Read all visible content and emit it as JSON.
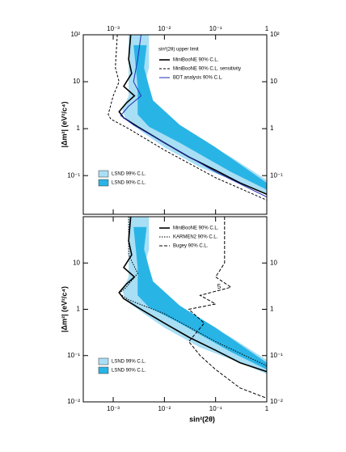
{
  "chart_data": [
    {
      "type": "line",
      "log_x": true,
      "log_y": true,
      "xaxis_position": "top",
      "xlim": [
        0.00026,
        1
      ],
      "ylim": [
        0.015,
        100
      ],
      "xticks": [
        {
          "value": 0.001,
          "label": "10⁻³"
        },
        {
          "value": 0.01,
          "label": "10⁻²"
        },
        {
          "value": 0.1,
          "label": "10⁻¹"
        },
        1
      ],
      "yticks": [
        {
          "value": 100,
          "label": "10²"
        },
        10,
        1,
        {
          "value": 0.1,
          "label": "10⁻¹"
        }
      ],
      "ylabel": "|Δm²| (eV²/c⁴)",
      "legend_title": "sin²(2θ) upper limit",
      "series": [
        {
          "name": "LSND 99% C.L.",
          "fill": true,
          "color": "#a8dff5",
          "x": [
            0.002,
            0.005,
            0.005,
            0.004,
            0.005,
            0.008,
            0.03,
            0.2,
            1,
            1,
            0.3,
            0.05,
            0.01,
            0.004,
            0.0018,
            0.0015,
            0.002
          ],
          "values": [
            100,
            100,
            20,
            8,
            4,
            2,
            0.8,
            0.25,
            0.08,
            0.04,
            0.07,
            0.15,
            0.4,
            0.8,
            1.5,
            2.5,
            5
          ]
        },
        {
          "name": "LSND 90% C.L.",
          "fill": true,
          "color": "#29b4e6",
          "x": [
            0.0025,
            0.0045,
            0.004,
            0.005,
            0.006,
            0.02,
            0.1,
            1,
            1,
            0.2,
            0.02,
            0.005,
            0.003,
            0.003
          ],
          "values": [
            60,
            60,
            20,
            8,
            4,
            1.2,
            0.4,
            0.07,
            0.05,
            0.12,
            0.5,
            1.1,
            2,
            8
          ]
        },
        {
          "name": "MiniBooNE 90% C.L.",
          "color": "#000000",
          "dash": "none",
          "width": 1.6,
          "x": [
            0.0022,
            0.002,
            0.0023,
            0.0016,
            0.0026,
            0.0018,
            0.0013,
            0.0016,
            0.003,
            0.01,
            0.03,
            0.1,
            0.3,
            1
          ],
          "values": [
            100,
            30,
            15,
            8,
            5,
            3.5,
            2.3,
            1.7,
            1.1,
            0.5,
            0.25,
            0.13,
            0.07,
            0.04
          ]
        },
        {
          "name": "MiniBooNE 90% C.L. sensitivity",
          "color": "#000000",
          "dash": "3,2",
          "width": 1,
          "x": [
            0.0012,
            0.0011,
            0.0013,
            0.001,
            0.0008,
            0.0009,
            0.002,
            0.01,
            0.1,
            1
          ],
          "values": [
            100,
            20,
            10,
            5,
            2,
            1.6,
            1,
            0.35,
            0.09,
            0.03
          ]
        },
        {
          "name": "BDT analysis 90% C.L.",
          "color": "#1f2fb8",
          "dash": "none",
          "width": 1,
          "x": [
            0.0035,
            0.003,
            0.0025,
            0.0035,
            0.002,
            0.0014,
            0.0025,
            0.01,
            0.1,
            1
          ],
          "values": [
            100,
            30,
            10,
            5,
            3,
            1.9,
            1.2,
            0.5,
            0.12,
            0.035
          ]
        }
      ]
    },
    {
      "type": "line",
      "log_x": true,
      "log_y": true,
      "xaxis_position": "bottom",
      "xlim": [
        0.00026,
        1
      ],
      "ylim": [
        0.01,
        100
      ],
      "xticks": [
        {
          "value": 0.001,
          "label": "10⁻³"
        },
        {
          "value": 0.01,
          "label": "10⁻²"
        },
        {
          "value": 0.1,
          "label": "10⁻¹"
        },
        1
      ],
      "yticks": [
        10,
        1,
        {
          "value": 0.1,
          "label": "10⁻¹"
        },
        {
          "value": 0.01,
          "label": "10⁻²"
        }
      ],
      "xlabel": "sin²(2θ)",
      "ylabel": "|Δm²| (eV²/c⁴)",
      "annotation": "5",
      "series": [
        {
          "name": "LSND 99% C.L.",
          "fill": true,
          "color": "#a8dff5",
          "x": [
            0.002,
            0.005,
            0.005,
            0.004,
            0.005,
            0.008,
            0.03,
            0.2,
            1,
            1,
            0.3,
            0.05,
            0.01,
            0.004,
            0.0018,
            0.0015,
            0.002
          ],
          "values": [
            100,
            100,
            20,
            8,
            4,
            2,
            0.8,
            0.25,
            0.08,
            0.04,
            0.07,
            0.15,
            0.4,
            0.8,
            1.5,
            2.5,
            5
          ]
        },
        {
          "name": "LSND 90% C.L.",
          "fill": true,
          "color": "#29b4e6",
          "x": [
            0.0025,
            0.0045,
            0.004,
            0.005,
            0.006,
            0.02,
            0.1,
            1,
            1,
            0.2,
            0.02,
            0.005,
            0.003,
            0.003
          ],
          "values": [
            60,
            60,
            20,
            8,
            4,
            1.2,
            0.4,
            0.07,
            0.05,
            0.12,
            0.5,
            1.1,
            2,
            8
          ]
        },
        {
          "name": "MiniBooNE 90% C.L.",
          "color": "#000000",
          "dash": "none",
          "width": 1.6,
          "x": [
            0.0022,
            0.002,
            0.0023,
            0.0016,
            0.0026,
            0.0018,
            0.0013,
            0.0016,
            0.003,
            0.01,
            0.03,
            0.1,
            0.3,
            1
          ],
          "values": [
            100,
            30,
            15,
            8,
            5,
            3.5,
            2.3,
            1.7,
            1.1,
            0.5,
            0.25,
            0.13,
            0.07,
            0.045
          ]
        },
        {
          "name": "KARMEN2 90% C.L.",
          "color": "#000000",
          "dash": "1.5,1.5",
          "width": 1,
          "x": [
            0.002,
            0.002,
            0.003,
            0.0018,
            0.0013,
            0.002,
            0.01,
            0.1,
            1
          ],
          "values": [
            100,
            15,
            6,
            3,
            2.2,
            1.6,
            0.8,
            0.2,
            0.06
          ]
        },
        {
          "name": "Bugey 90% C.L.",
          "color": "#000000",
          "dash": "4,2",
          "width": 1,
          "x": [
            0.15,
            0.15,
            0.1,
            0.2,
            0.05,
            0.1,
            0.03,
            0.06,
            0.03,
            0.05,
            0.1,
            0.3,
            1
          ],
          "values": [
            100,
            10,
            5,
            3,
            2,
            1.3,
            1,
            0.5,
            0.2,
            0.1,
            0.05,
            0.02,
            0.012
          ]
        }
      ]
    }
  ]
}
